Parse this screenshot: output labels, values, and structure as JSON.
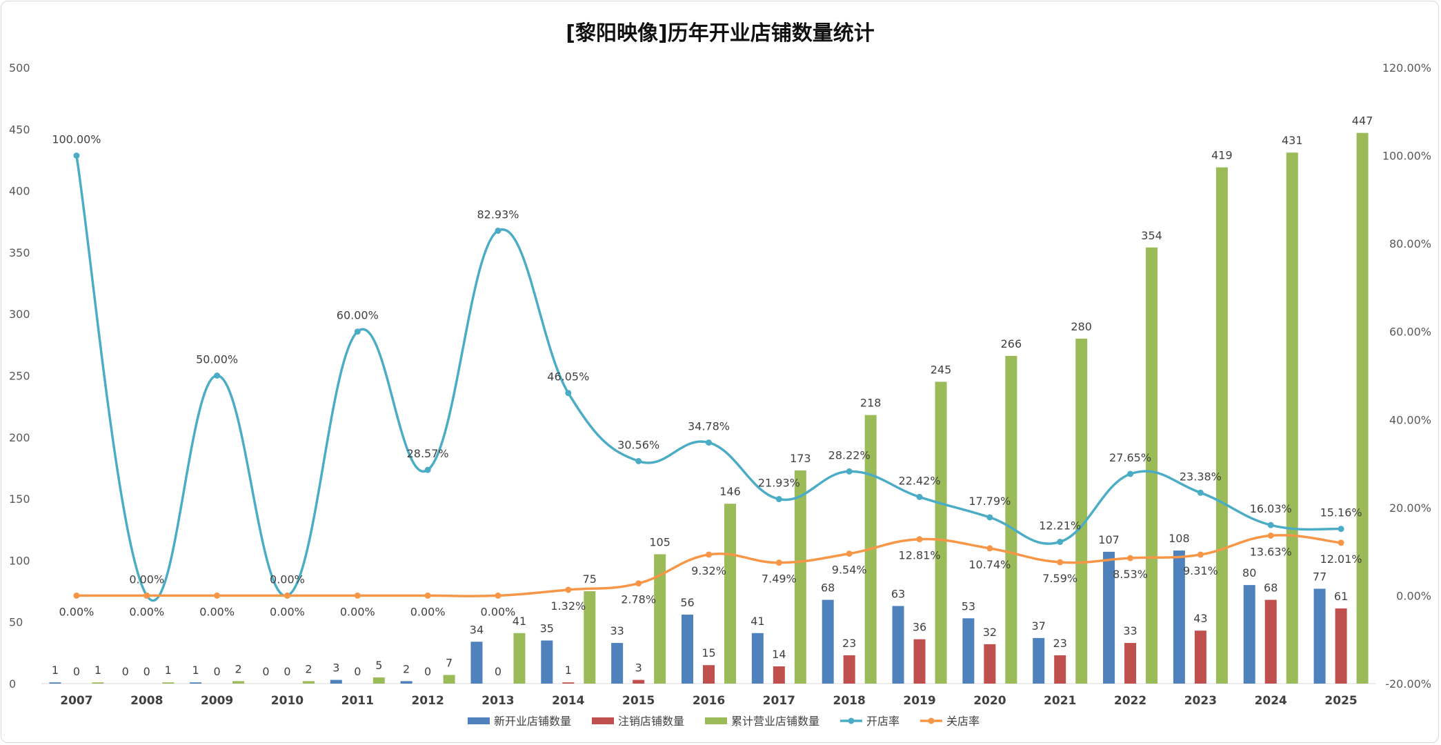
{
  "chart_data": {
    "type": "bar",
    "title": "[黎阳映像]历年开业店铺数量统计",
    "categories": [
      "2007",
      "2008",
      "2009",
      "2010",
      "2011",
      "2012",
      "2013",
      "2014",
      "2015",
      "2016",
      "2017",
      "2018",
      "2019",
      "2020",
      "2021",
      "2022",
      "2023",
      "2024",
      "2025"
    ],
    "ylim": [
      0,
      500
    ],
    "yticks": [
      0,
      50,
      100,
      150,
      200,
      250,
      300,
      350,
      400,
      450,
      500
    ],
    "y2lim": [
      -20,
      120
    ],
    "y2ticks": [
      "-20.00%",
      "0.00%",
      "20.00%",
      "40.00%",
      "60.00%",
      "80.00%",
      "100.00%",
      "120.00%"
    ],
    "y2tick_values": [
      -20,
      0,
      20,
      40,
      60,
      80,
      100,
      120
    ],
    "grid": false,
    "legend_position": "bottom",
    "series": [
      {
        "name": "新开业店铺数量",
        "type": "bar",
        "axis": "left",
        "color": "#4f81bd",
        "values": [
          1,
          0,
          1,
          0,
          3,
          2,
          34,
          35,
          33,
          56,
          41,
          68,
          63,
          53,
          37,
          107,
          108,
          80,
          77
        ]
      },
      {
        "name": "注销店铺数量",
        "type": "bar",
        "axis": "left",
        "color": "#c0504d",
        "values": [
          0,
          0,
          0,
          0,
          0,
          0,
          0,
          1,
          3,
          15,
          14,
          23,
          36,
          32,
          23,
          33,
          43,
          68,
          61
        ]
      },
      {
        "name": "累计营业店铺数量",
        "type": "bar",
        "axis": "left",
        "color": "#9bbb59",
        "values": [
          1,
          1,
          2,
          2,
          5,
          7,
          41,
          75,
          105,
          146,
          173,
          218,
          245,
          266,
          280,
          354,
          419,
          431,
          447
        ]
      },
      {
        "name": "开店率",
        "type": "line",
        "axis": "right",
        "color": "#4bacc6",
        "values": [
          100.0,
          0.0,
          50.0,
          0.0,
          60.0,
          28.57,
          82.93,
          46.05,
          30.56,
          34.78,
          21.93,
          28.22,
          22.42,
          17.79,
          12.21,
          27.65,
          23.38,
          16.03,
          15.16
        ],
        "labels": [
          "100.00%",
          "0.00%",
          "50.00%",
          "0.00%",
          "60.00%",
          "28.57%",
          "82.93%",
          "46.05%",
          "30.56%",
          "34.78%",
          "21.93%",
          "28.22%",
          "22.42%",
          "17.79%",
          "12.21%",
          "27.65%",
          "23.38%",
          "16.03%",
          "15.16%"
        ]
      },
      {
        "name": "关店率",
        "type": "line",
        "axis": "right",
        "color": "#f79646",
        "values": [
          0.0,
          0.0,
          0.0,
          0.0,
          0.0,
          0.0,
          0.0,
          1.32,
          2.78,
          9.32,
          7.49,
          9.54,
          12.81,
          10.74,
          7.59,
          8.53,
          9.31,
          13.63,
          12.01
        ],
        "labels": [
          "0.00%",
          "0.00%",
          "0.00%",
          "0.00%",
          "0.00%",
          "0.00%",
          "0.00%",
          "1.32%",
          "2.78%",
          "9.32%",
          "7.49%",
          "9.54%",
          "12.81%",
          "10.74%",
          "7.59%",
          "8.53%",
          "9.31%",
          "13.63%",
          "12.01%"
        ]
      }
    ]
  }
}
